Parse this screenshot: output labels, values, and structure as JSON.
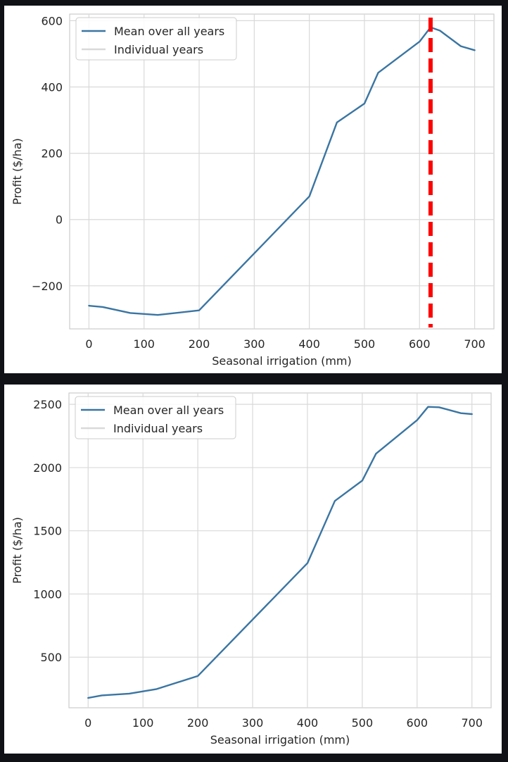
{
  "chart_data": [
    {
      "type": "line",
      "xlabel": "Seasonal irrigation (mm)",
      "ylabel": "Profit ($/ha)",
      "xlim": [
        -35,
        735
      ],
      "ylim": [
        -330,
        620
      ],
      "xticks": [
        0,
        100,
        200,
        300,
        400,
        500,
        600,
        700
      ],
      "yticks": [
        -200,
        0,
        200,
        400,
        600
      ],
      "ytick_labels": [
        "−200",
        "0",
        "200",
        "400",
        "600"
      ],
      "grid": true,
      "legend": {
        "placement": "top-left",
        "entries": [
          "Mean over all years",
          "Individual years"
        ]
      },
      "series": [
        {
          "name": "Mean over all years",
          "color": "#3a75a2",
          "x": [
            0,
            25,
            75,
            125,
            200,
            400,
            450,
            500,
            525,
            600,
            620,
            637,
            675,
            700
          ],
          "y": [
            -260,
            -264,
            -282,
            -288,
            -274,
            70,
            293,
            350,
            443,
            537,
            580,
            570,
            523,
            511
          ]
        },
        {
          "name": "Individual years",
          "color": "#d9d9d9",
          "x": [],
          "y": []
        }
      ],
      "annotations": [
        {
          "type": "vline",
          "x": 620,
          "color": "#ff0000",
          "style": "dashed"
        }
      ]
    },
    {
      "type": "line",
      "xlabel": "Seasonal irrigation (mm)",
      "ylabel": "Profit ($/ha)",
      "xlim": [
        -35,
        735
      ],
      "ylim": [
        100,
        2590
      ],
      "xticks": [
        0,
        100,
        200,
        300,
        400,
        500,
        600,
        700
      ],
      "yticks": [
        500,
        1000,
        1500,
        2000,
        2500
      ],
      "ytick_labels": [
        "500",
        "1000",
        "1500",
        "2000",
        "2500"
      ],
      "grid": true,
      "legend": {
        "placement": "top-left",
        "entries": [
          "Mean over all years",
          "Individual years"
        ]
      },
      "series": [
        {
          "name": "Mean over all years",
          "color": "#3a75a2",
          "x": [
            0,
            25,
            75,
            125,
            200,
            400,
            450,
            500,
            525,
            600,
            620,
            640,
            680,
            700
          ],
          "y": [
            178,
            198,
            212,
            248,
            351,
            1244,
            1736,
            1897,
            2110,
            2375,
            2480,
            2477,
            2430,
            2423
          ]
        },
        {
          "name": "Individual years",
          "color": "#d9d9d9",
          "x": [],
          "y": []
        }
      ],
      "annotations": []
    }
  ]
}
